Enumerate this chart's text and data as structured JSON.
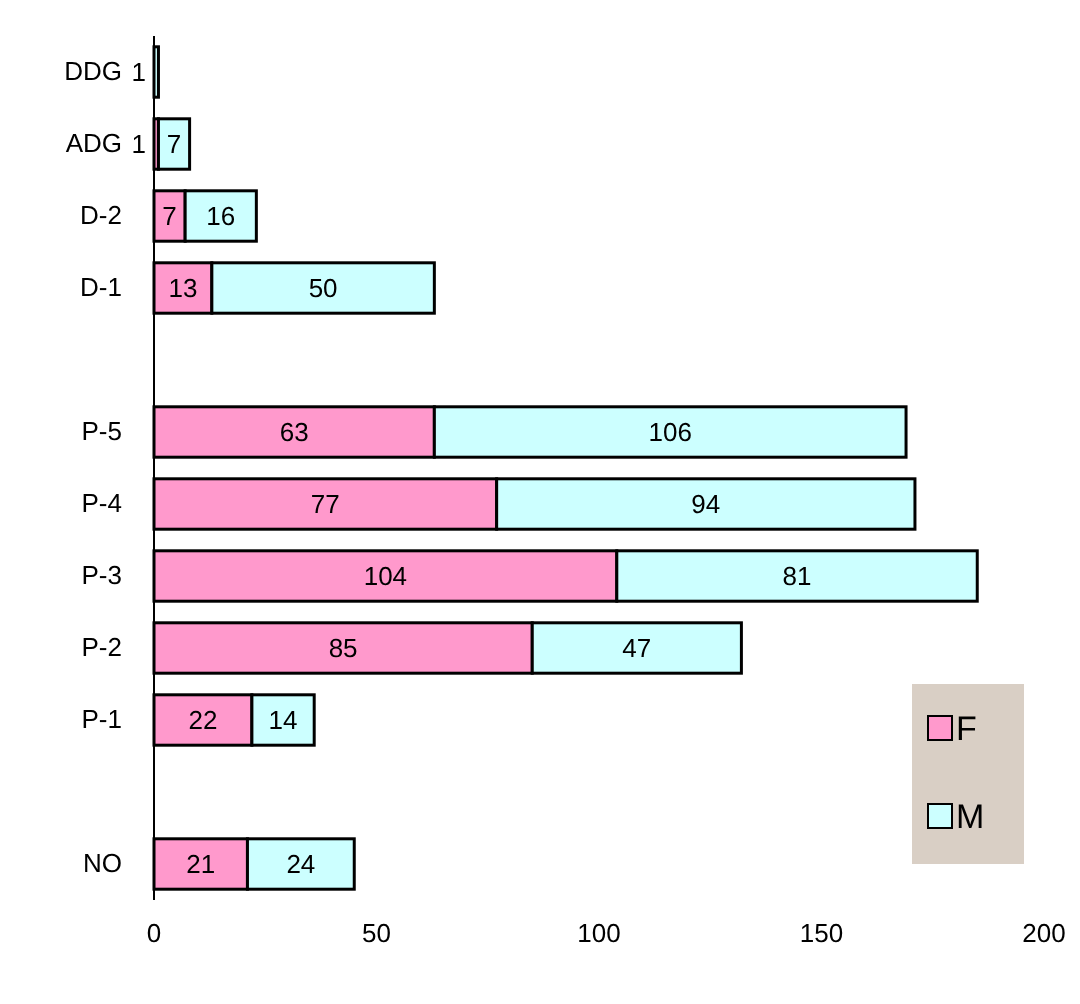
{
  "chart_data": {
    "type": "bar",
    "orientation": "horizontal",
    "stacked": true,
    "categories": [
      "DDG",
      "ADG",
      "D-2",
      "D-1",
      null,
      "P-5",
      "P-4",
      "P-3",
      "P-2",
      "P-1",
      null,
      "NO"
    ],
    "series": [
      {
        "name": "F",
        "color": "#ff99cc",
        "values": [
          null,
          1,
          7,
          13,
          null,
          63,
          77,
          104,
          85,
          22,
          null,
          21
        ]
      },
      {
        "name": "M",
        "color": "#ccffff",
        "values": [
          1,
          7,
          16,
          50,
          null,
          106,
          94,
          81,
          47,
          14,
          null,
          24
        ]
      }
    ],
    "xlim": [
      0,
      200
    ],
    "xticks": [
      0,
      50,
      100,
      150,
      200
    ],
    "data_labels": true,
    "legend": "bottom right",
    "grid": false
  }
}
